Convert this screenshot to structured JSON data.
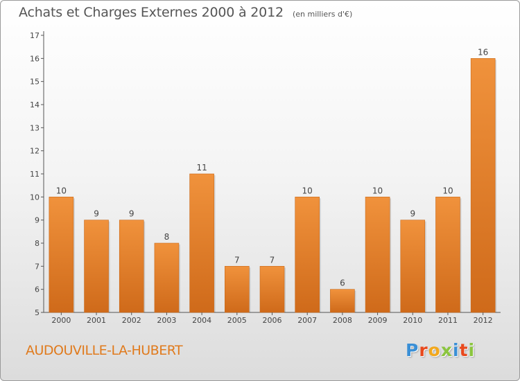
{
  "chart_data": {
    "type": "bar",
    "title": "Achats et Charges Externes 2000 à 2012",
    "unit": "(en milliers d'€)",
    "categories": [
      "2000",
      "2001",
      "2002",
      "2003",
      "2004",
      "2005",
      "2006",
      "2007",
      "2008",
      "2009",
      "2010",
      "2011",
      "2012"
    ],
    "values": [
      10,
      9,
      9,
      8,
      11,
      7,
      7,
      10,
      6,
      10,
      9,
      10,
      16
    ],
    "ylim": [
      5,
      17
    ],
    "yticks": [
      5,
      6,
      7,
      8,
      9,
      10,
      11,
      12,
      13,
      14,
      15,
      16,
      17
    ],
    "grid": false,
    "bar_color": "#f0923c",
    "bar_color_dark": "#cf6a1a",
    "data_labels": true
  },
  "commune": "AUDOUVILLE-LA-HUBERT",
  "logo": {
    "letters": [
      {
        "char": "P",
        "color": "#3a8fd6"
      },
      {
        "char": "r",
        "color": "#e8491d"
      },
      {
        "char": "o",
        "color": "#f2a81d"
      },
      {
        "char": "x",
        "color": "#8bc53f"
      },
      {
        "char": "i",
        "color": "#3a8fd6"
      },
      {
        "char": "t",
        "color": "#e8491d"
      },
      {
        "char": "i",
        "color": "#8bc53f"
      }
    ]
  }
}
